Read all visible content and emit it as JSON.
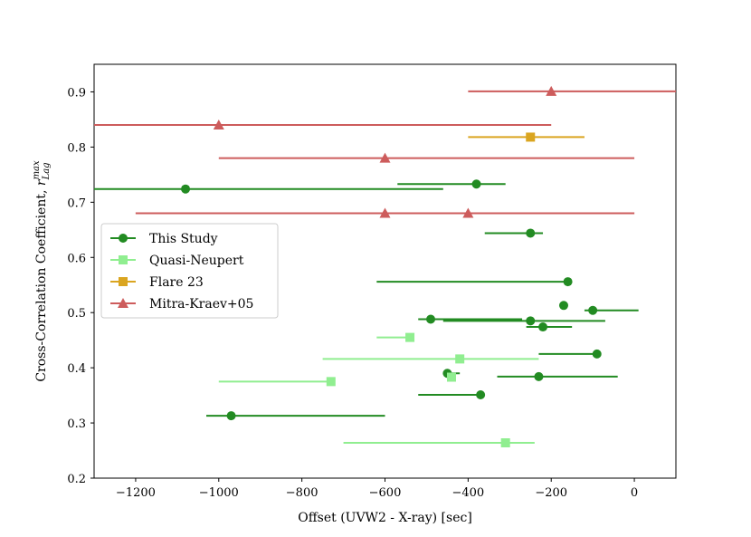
{
  "chart_data": {
    "type": "scatter",
    "xlabel": "Offset (UVW2 - X-ray) [sec]",
    "ylabel_main": "Cross-Correlation Coefficient, ",
    "ylabel_symbol": "r",
    "ylabel_sup": "max",
    "ylabel_sub": "Lag",
    "xlim": [
      -1300,
      100
    ],
    "ylim": [
      0.2,
      0.95
    ],
    "x_ticks": [
      -1200,
      -1000,
      -800,
      -600,
      -400,
      -200,
      0
    ],
    "x_tick_labels": [
      "−1200",
      "−1000",
      "−800",
      "−600",
      "−400",
      "−200",
      "0"
    ],
    "y_ticks": [
      0.2,
      0.3,
      0.4,
      0.5,
      0.6,
      0.7,
      0.8,
      0.9
    ],
    "y_tick_labels": [
      "0.2",
      "0.3",
      "0.4",
      "0.5",
      "0.6",
      "0.7",
      "0.8",
      "0.9"
    ],
    "legend_position": "center-left",
    "series": [
      {
        "name": "This Study",
        "color": "#228b22",
        "marker": "circle",
        "points": [
          {
            "x": -1080,
            "y": 0.724,
            "xmin": -1300,
            "xmax": -460
          },
          {
            "x": -380,
            "y": 0.733,
            "xmin": -570,
            "xmax": -310
          },
          {
            "x": -250,
            "y": 0.644,
            "xmin": -360,
            "xmax": -220
          },
          {
            "x": -160,
            "y": 0.556,
            "xmin": -620,
            "xmax": -160
          },
          {
            "x": -170,
            "y": 0.513,
            "xmin": -170,
            "xmax": -170
          },
          {
            "x": -100,
            "y": 0.504,
            "xmin": -120,
            "xmax": 10
          },
          {
            "x": -490,
            "y": 0.488,
            "xmin": -520,
            "xmax": -270
          },
          {
            "x": -250,
            "y": 0.485,
            "xmin": -460,
            "xmax": -70
          },
          {
            "x": -220,
            "y": 0.474,
            "xmin": -260,
            "xmax": -150
          },
          {
            "x": -90,
            "y": 0.425,
            "xmin": -230,
            "xmax": -90
          },
          {
            "x": -450,
            "y": 0.39,
            "xmin": -460,
            "xmax": -420
          },
          {
            "x": -230,
            "y": 0.384,
            "xmin": -330,
            "xmax": -40
          },
          {
            "x": -370,
            "y": 0.351,
            "xmin": -520,
            "xmax": -370
          },
          {
            "x": -970,
            "y": 0.313,
            "xmin": -1030,
            "xmax": -600
          }
        ]
      },
      {
        "name": "Quasi-Neupert",
        "color": "#90ee90",
        "marker": "square",
        "points": [
          {
            "x": -540,
            "y": 0.455,
            "xmin": -620,
            "xmax": -540
          },
          {
            "x": -420,
            "y": 0.416,
            "xmin": -750,
            "xmax": -230
          },
          {
            "x": -730,
            "y": 0.375,
            "xmin": -1000,
            "xmax": -730
          },
          {
            "x": -440,
            "y": 0.383,
            "xmin": -440,
            "xmax": -440
          },
          {
            "x": -310,
            "y": 0.264,
            "xmin": -700,
            "xmax": -240
          }
        ]
      },
      {
        "name": "Flare 23",
        "color": "#daa520",
        "marker": "square",
        "points": [
          {
            "x": -250,
            "y": 0.818,
            "xmin": -400,
            "xmax": -120
          }
        ]
      },
      {
        "name": "Mitra-Kraev+05",
        "color": "#cd5c5c",
        "marker": "triangle",
        "points": [
          {
            "x": -200,
            "y": 0.901,
            "xmin": -400,
            "xmax": 100
          },
          {
            "x": -1000,
            "y": 0.84,
            "xmin": -1300,
            "xmax": -200
          },
          {
            "x": -600,
            "y": 0.78,
            "xmin": -1000,
            "xmax": 0
          },
          {
            "x": -600,
            "y": 0.68,
            "xmin": -1200,
            "xmax": 0
          },
          {
            "x": -400,
            "y": 0.68,
            "xmin": -1200,
            "xmax": 0
          }
        ]
      }
    ]
  }
}
